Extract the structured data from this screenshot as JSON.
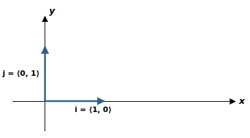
{
  "chart_data": {
    "type": "vector",
    "x_label": "x",
    "y_label": "y",
    "xlim": [
      -0.55,
      3.2
    ],
    "ylim": [
      -0.55,
      1.55
    ],
    "xticks": [],
    "yticks": [],
    "tick_labels": false,
    "color": "#2e5f8a",
    "vectors": [
      {
        "label": "i = ⟨1, 0⟩",
        "x0": 0,
        "y0": 0,
        "x": 1,
        "y": 0
      },
      {
        "label": "j = ⟨0, 1⟩",
        "x0": 0,
        "y0": 0,
        "x": 0,
        "y": 1
      }
    ]
  }
}
